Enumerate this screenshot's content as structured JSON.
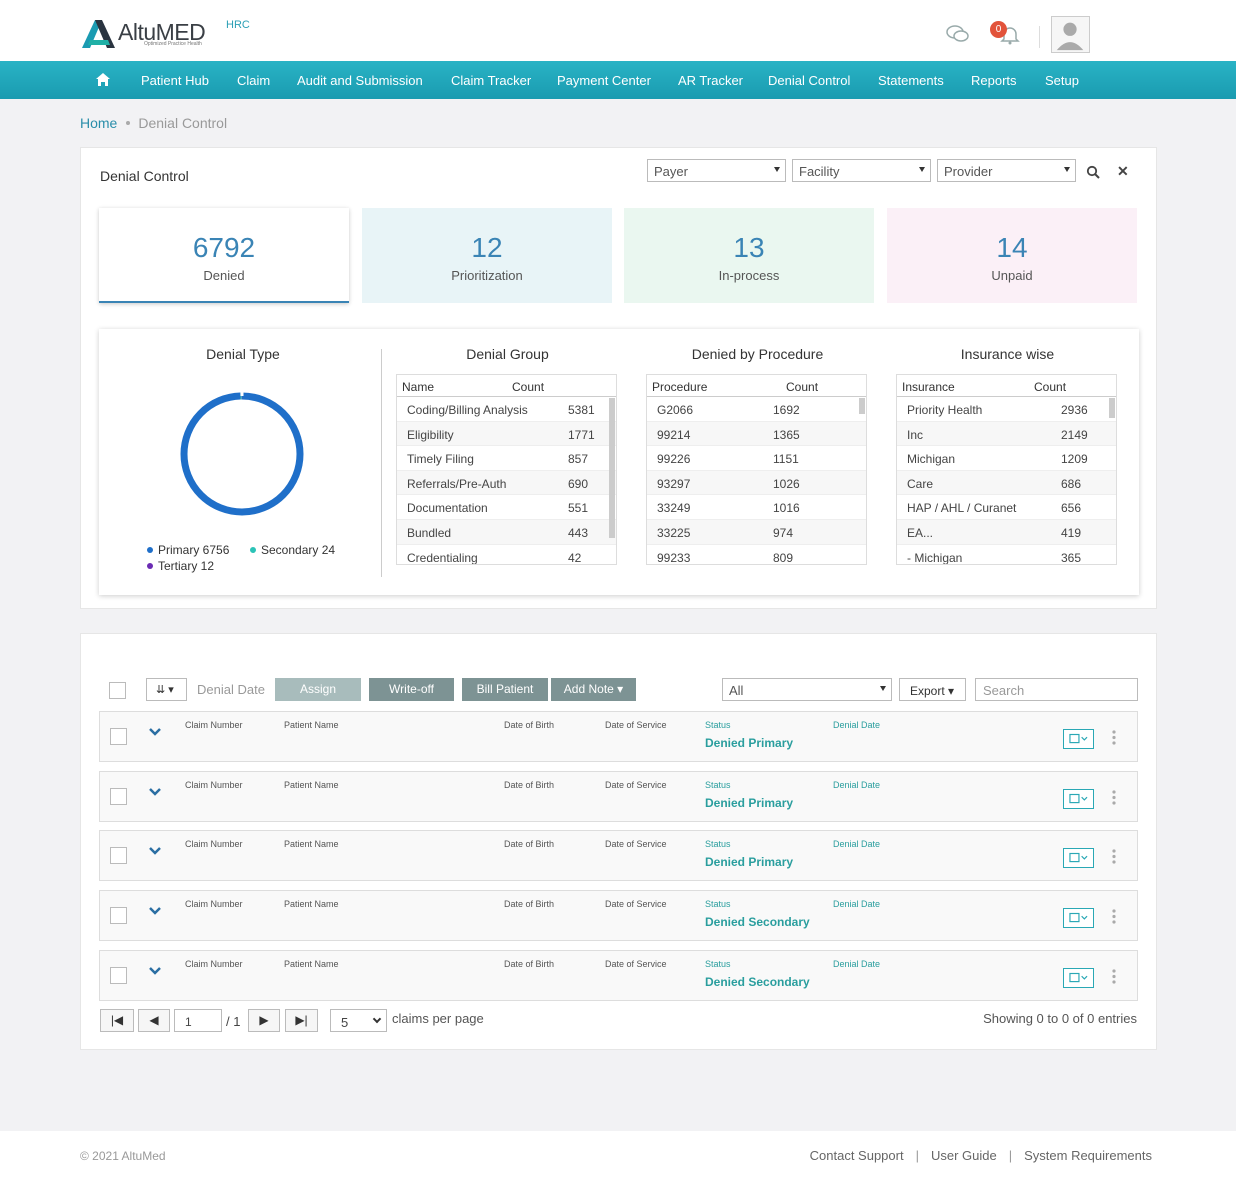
{
  "header": {
    "brand": "AltuMED",
    "brand_tagline": "Optimized Practice Health",
    "tenant": "HRC",
    "notification_count": "0"
  },
  "nav": {
    "items": [
      "Patient Hub",
      "Claim",
      "Audit and Submission",
      "Claim Tracker",
      "Payment Center",
      "AR Tracker",
      "Denial Control",
      "Statements",
      "Reports",
      "Setup"
    ]
  },
  "breadcrumb": {
    "home": "Home",
    "current": "Denial Control"
  },
  "page": {
    "title": "Denial Control"
  },
  "filters": {
    "payer": "Payer",
    "facility": "Facility",
    "provider": "Provider"
  },
  "cards": [
    {
      "value": "6792",
      "label": "Denied"
    },
    {
      "value": "12",
      "label": "Prioritization"
    },
    {
      "value": "13",
      "label": "In-process"
    },
    {
      "value": "14",
      "label": "Unpaid"
    }
  ],
  "denial_type": {
    "title": "Denial Type",
    "legend": [
      {
        "label": "Primary 6756",
        "color": "#1f6fc9",
        "value": 6756
      },
      {
        "label": "Secondary 24",
        "color": "#2bc3b7",
        "value": 24
      },
      {
        "label": "Tertiary 12",
        "color": "#6b2bb3",
        "value": 12
      }
    ]
  },
  "denial_group": {
    "title": "Denial Group",
    "col1": "Name",
    "col2": "Count",
    "rows": [
      [
        "Coding/Billing Analysis",
        "5381"
      ],
      [
        "Eligibility",
        "1771"
      ],
      [
        "Timely Filing",
        "857"
      ],
      [
        "Referrals/Pre-Auth",
        "690"
      ],
      [
        "Documentation",
        "551"
      ],
      [
        "Bundled",
        "443"
      ],
      [
        "Credentialing",
        "42"
      ]
    ]
  },
  "denied_by_procedure": {
    "title": "Denied by Procedure",
    "col1": "Procedure",
    "col2": "Count",
    "rows": [
      [
        "G2066",
        "1692"
      ],
      [
        "99214",
        "1365"
      ],
      [
        "99226",
        "1151"
      ],
      [
        "93297",
        "1026"
      ],
      [
        "33249",
        "1016"
      ],
      [
        "33225",
        "974"
      ],
      [
        "99233",
        "809"
      ]
    ]
  },
  "insurance_wise": {
    "title": "Insurance wise",
    "col1": "Insurance",
    "col2": "Count",
    "rows": [
      [
        "Priority Health",
        "2936"
      ],
      [
        "Inc",
        "2149"
      ],
      [
        "Michigan",
        "1209"
      ],
      [
        "Care",
        "686"
      ],
      [
        "HAP / AHL / Curanet",
        "656"
      ],
      [
        "EA...",
        "419"
      ],
      [
        "- Michigan",
        "365"
      ]
    ]
  },
  "toolbar": {
    "denial_date": "Denial Date",
    "assign": "Assign",
    "writeoff": "Write-off",
    "bill_patient": "Bill Patient",
    "add_note": "Add Note",
    "status_filter": "All",
    "export": "Export",
    "search_placeholder": "Search"
  },
  "claim_labels": {
    "claim_number": "Claim Number",
    "patient_name": "Patient Name",
    "dob": "Date of Birth",
    "dos": "Date of Service",
    "status": "Status",
    "denial_date": "Denial Date"
  },
  "claims": [
    {
      "status": "Denied Primary"
    },
    {
      "status": "Denied Primary"
    },
    {
      "status": "Denied Primary"
    },
    {
      "status": "Denied Secondary"
    },
    {
      "status": "Denied Secondary"
    }
  ],
  "pagination": {
    "page": "1",
    "total": "/ 1",
    "per_page": "5",
    "per_page_label": "claims per page",
    "showing": "Showing 0 to 0 of 0 entries"
  },
  "footer": {
    "copyright": "© 2021 AltuMed",
    "links": [
      "Contact Support",
      "User Guide",
      "System Requirements"
    ]
  }
}
